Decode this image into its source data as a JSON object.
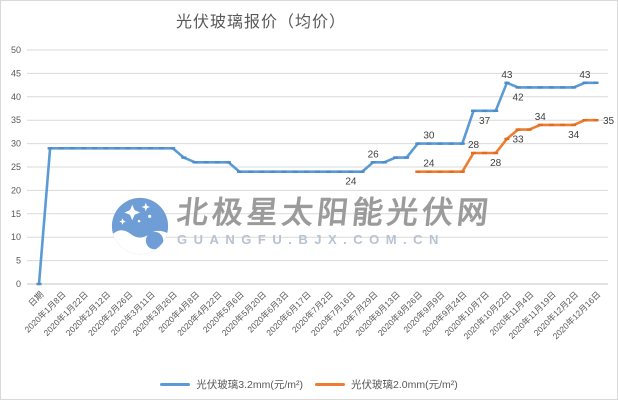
{
  "title": "光伏玻璃报价（均价）",
  "watermark": {
    "line1": "北极星太阳能光伏网",
    "line2": "GUANGFU.BJX.COM.CN"
  },
  "legend": [
    {
      "label": "光伏玻璃3.2mm(元/m²)",
      "color": "#5B9BD5"
    },
    {
      "label": "光伏玻璃2.0mm(元/m²)",
      "color": "#ED7D31"
    }
  ],
  "colors": {
    "grid": "#D9D9D9",
    "axis": "#C6C6C6",
    "tick_text": "#595959",
    "point_label_text": "#404040",
    "logo_blue": "#6F9ED6"
  },
  "chart_data": {
    "type": "line",
    "title": "光伏玻璃报价（均价）",
    "ylim": [
      0,
      50
    ],
    "ytick_step": 5,
    "grid": true,
    "legend_position": "bottom",
    "n_points": 51,
    "x_label_interval": 2,
    "x_labels": [
      "日期",
      "2020年1月8日",
      "2020年1月22日",
      "2020年2月12日",
      "2020年2月26日",
      "2020年3月11日",
      "2020年3月26日",
      "2020年4月8日",
      "2020年4月22日",
      "2020年5月6日",
      "2020年5月20日",
      "2020年6月3日",
      "2020年6月17日",
      "2020年7月2日",
      "2020年7月16日",
      "2020年7月29日",
      "2020年8月13日",
      "2020年8月26日",
      "2020年9月9日",
      "2020年9月24日",
      "2020年10月7日",
      "2020年10月22日",
      "2020年11月4日",
      "2020年11月19日",
      "2020年12月2日",
      "2020年12月16日"
    ],
    "series": [
      {
        "name": "光伏玻璃3.2mm(元/m²)",
        "color": "#5B9BD5",
        "marker_color": "#4d8bc9",
        "values": [
          0,
          29,
          29,
          29,
          29,
          29,
          29,
          29,
          29,
          29,
          29,
          29,
          29,
          27,
          26,
          26,
          26,
          26,
          24,
          24,
          24,
          24,
          24,
          24,
          24,
          24,
          24,
          24,
          24,
          24,
          26,
          26,
          27,
          27,
          30,
          30,
          30,
          30,
          30,
          37,
          37,
          37,
          43,
          42,
          42,
          42,
          42,
          42,
          42,
          43,
          43
        ]
      },
      {
        "name": "光伏玻璃2.0mm(元/m²)",
        "color": "#ED7D31",
        "marker_color": "#df6e22",
        "values": [
          null,
          null,
          null,
          null,
          null,
          null,
          null,
          null,
          null,
          null,
          null,
          null,
          null,
          null,
          null,
          null,
          null,
          null,
          null,
          null,
          null,
          null,
          null,
          null,
          null,
          null,
          null,
          null,
          null,
          null,
          null,
          null,
          null,
          null,
          24,
          24,
          24,
          24,
          24,
          28,
          28,
          28,
          31,
          33,
          33,
          34,
          34,
          34,
          34,
          35,
          35
        ]
      }
    ],
    "point_labels": [
      {
        "series": 0,
        "index": 28,
        "text": "24",
        "position": "below"
      },
      {
        "series": 0,
        "index": 30,
        "text": "26",
        "position": "above"
      },
      {
        "series": 0,
        "index": 35,
        "text": "30",
        "position": "above"
      },
      {
        "series": 0,
        "index": 40,
        "text": "37",
        "position": "below"
      },
      {
        "series": 0,
        "index": 42,
        "text": "43",
        "position": "above"
      },
      {
        "series": 0,
        "index": 43,
        "text": "42",
        "position": "below"
      },
      {
        "series": 0,
        "index": 49,
        "text": "43",
        "position": "above"
      },
      {
        "series": 1,
        "index": 35,
        "text": "24",
        "position": "above"
      },
      {
        "series": 1,
        "index": 39,
        "text": "28",
        "position": "above"
      },
      {
        "series": 1,
        "index": 41,
        "text": "28",
        "position": "below"
      },
      {
        "series": 1,
        "index": 43,
        "text": "33",
        "position": "below"
      },
      {
        "series": 1,
        "index": 45,
        "text": "34",
        "position": "above"
      },
      {
        "series": 1,
        "index": 48,
        "text": "34",
        "position": "below"
      },
      {
        "series": 1,
        "index": 50,
        "text": "35",
        "position": "right"
      }
    ]
  }
}
